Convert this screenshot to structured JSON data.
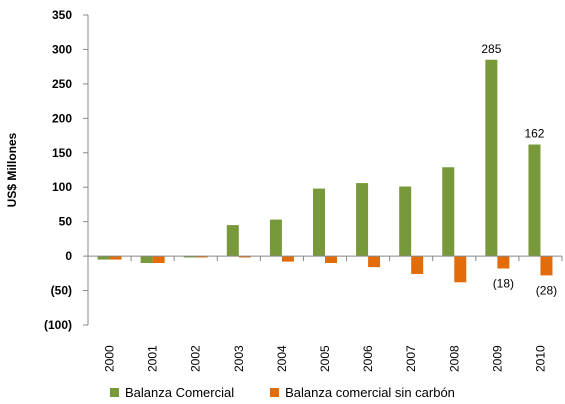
{
  "chart_data": {
    "type": "bar",
    "title": "",
    "ylabel": "US$ Millones",
    "xlabel": "",
    "ylim": [
      -100,
      350
    ],
    "ytick_values": [
      -100,
      -50,
      0,
      50,
      100,
      150,
      200,
      250,
      300,
      350
    ],
    "ytick_labels": [
      "(100)",
      "(50)",
      "0",
      "50",
      "100",
      "150",
      "200",
      "250",
      "300",
      "350"
    ],
    "categories": [
      "2000",
      "2001",
      "2002",
      "2003",
      "2004",
      "2005",
      "2006",
      "2007",
      "2008",
      "2009",
      "2010"
    ],
    "series": [
      {
        "name": "Balanza Comercial",
        "color": "#77993a",
        "values": [
          -5,
          -10,
          -2,
          45,
          53,
          98,
          106,
          101,
          129,
          285,
          162
        ],
        "data_labels": [
          "",
          "",
          "",
          "",
          "",
          "",
          "",
          "",
          "",
          "285",
          "162"
        ]
      },
      {
        "name": "Balanza comercial sin carbón",
        "color": "#e36c0a",
        "values": [
          -5,
          -10,
          -2,
          -2,
          -8,
          -10,
          -16,
          -26,
          -38,
          -18,
          -28
        ],
        "data_labels": [
          "",
          "",
          "",
          "",
          "",
          "",
          "",
          "",
          "",
          "(18)",
          "(28)"
        ]
      }
    ],
    "grid": false,
    "legend_position": "bottom"
  }
}
